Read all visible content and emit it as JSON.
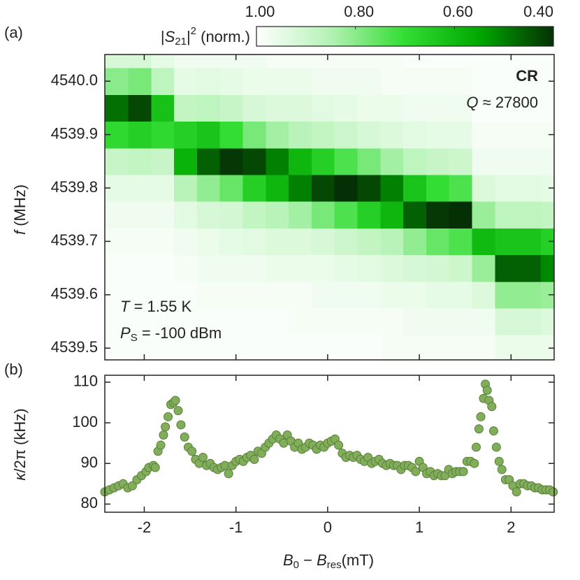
{
  "chart_data": [
    {
      "type": "heatmap",
      "panel_label": "(a)",
      "y_label": [
        "f",
        " (MHz)"
      ],
      "annotations": [
        [
          "CR"
        ],
        [
          "Q",
          " ≈ 27800"
        ],
        [
          "T",
          " = 1.55 K"
        ],
        [
          "P",
          "S",
          " = -100 dBm"
        ]
      ],
      "colorbar": {
        "label": [
          "|",
          "S",
          "21",
          "|",
          "2",
          " (norm.)"
        ],
        "clim": [
          1.0,
          0.4
        ],
        "ticks": [
          {
            "value": 1.0,
            "label": "1.00"
          },
          {
            "value": 0.8,
            "label": "0.80"
          },
          {
            "value": 0.6,
            "label": "0.60"
          },
          {
            "value": 0.4,
            "label": "0.40"
          }
        ],
        "colormap": [
          "#ffffff",
          "#b4f2b4",
          "#33dd33",
          "#00a800",
          "#053005"
        ]
      },
      "xlim": [
        -2.43,
        2.47
      ],
      "xticks": [
        -2,
        -1,
        0,
        1,
        2
      ],
      "show_xtick_labels": false,
      "ylim": [
        4539.478,
        4540.05
      ],
      "yticks": [
        {
          "value": 4539.5,
          "label": "4539.5"
        },
        4539.6,
        4539.7,
        4539.8,
        4539.9,
        {
          "value": 4540.0,
          "label": "4540.0"
        }
      ],
      "x": [
        -2.3,
        -2.05,
        -1.8,
        -1.55,
        -1.3,
        -1.05,
        -0.8,
        -0.55,
        -0.3,
        -0.05,
        0.2,
        0.45,
        0.7,
        0.95,
        1.2,
        1.45,
        1.7,
        1.95,
        2.2,
        2.45
      ],
      "y": [
        4539.5,
        4539.55,
        4539.6,
        4539.65,
        4539.7,
        4539.75,
        4539.8,
        4539.85,
        4539.9,
        4539.95,
        4540.0,
        4540.05
      ],
      "z": [
        [
          0.99,
          0.99,
          0.99,
          0.99,
          0.98,
          0.97,
          0.95,
          0.89,
          0.69,
          0.48,
          0.8,
          0.92
        ],
        [
          0.99,
          0.99,
          0.99,
          0.99,
          0.98,
          0.97,
          0.95,
          0.88,
          0.66,
          0.43,
          0.78,
          0.92
        ],
        [
          0.99,
          0.99,
          0.99,
          0.99,
          0.98,
          0.97,
          0.95,
          0.89,
          0.69,
          0.62,
          0.87,
          0.95
        ],
        [
          0.99,
          0.99,
          0.99,
          0.98,
          0.97,
          0.94,
          0.86,
          0.58,
          0.66,
          0.88,
          0.95,
          0.97
        ],
        [
          0.99,
          0.99,
          0.98,
          0.97,
          0.96,
          0.92,
          0.81,
          0.46,
          0.63,
          0.87,
          0.94,
          0.97
        ],
        [
          0.99,
          0.99,
          0.98,
          0.97,
          0.95,
          0.91,
          0.76,
          0.41,
          0.7,
          0.89,
          0.95,
          0.97
        ],
        [
          0.99,
          0.99,
          0.98,
          0.97,
          0.94,
          0.88,
          0.66,
          0.43,
          0.78,
          0.92,
          0.96,
          0.97
        ],
        [
          0.99,
          0.99,
          0.98,
          0.96,
          0.93,
          0.86,
          0.59,
          0.5,
          0.83,
          0.93,
          0.96,
          0.98
        ],
        [
          0.99,
          0.98,
          0.98,
          0.96,
          0.93,
          0.83,
          0.5,
          0.59,
          0.86,
          0.93,
          0.96,
          0.98
        ],
        [
          0.99,
          0.98,
          0.97,
          0.96,
          0.92,
          0.78,
          0.43,
          0.66,
          0.88,
          0.94,
          0.97,
          0.98
        ],
        [
          0.99,
          0.98,
          0.97,
          0.95,
          0.9,
          0.73,
          0.4,
          0.73,
          0.9,
          0.95,
          0.97,
          0.98
        ],
        [
          0.99,
          0.98,
          0.97,
          0.94,
          0.88,
          0.66,
          0.43,
          0.78,
          0.92,
          0.96,
          0.97,
          0.98
        ],
        [
          0.98,
          0.98,
          0.96,
          0.93,
          0.86,
          0.59,
          0.5,
          0.83,
          0.93,
          0.96,
          0.98,
          0.98
        ],
        [
          0.98,
          0.97,
          0.96,
          0.92,
          0.81,
          0.46,
          0.63,
          0.87,
          0.94,
          0.97,
          0.98,
          0.99
        ],
        [
          0.98,
          0.97,
          0.95,
          0.91,
          0.76,
          0.41,
          0.7,
          0.89,
          0.95,
          0.97,
          0.98,
          0.99
        ],
        [
          0.98,
          0.97,
          0.95,
          0.9,
          0.73,
          0.4,
          0.73,
          0.9,
          0.95,
          0.97,
          0.98,
          0.99
        ],
        [
          0.98,
          0.97,
          0.93,
          0.82,
          0.6,
          0.82,
          0.93,
          0.97,
          0.98,
          0.99,
          0.99,
          0.99
        ],
        [
          0.96,
          0.92,
          0.81,
          0.46,
          0.63,
          0.87,
          0.94,
          0.97,
          0.98,
          0.99,
          0.99,
          0.99
        ],
        [
          0.96,
          0.92,
          0.81,
          0.46,
          0.63,
          0.87,
          0.94,
          0.97,
          0.98,
          0.99,
          0.99,
          0.99
        ],
        [
          0.96,
          0.93,
          0.82,
          0.51,
          0.66,
          0.88,
          0.95,
          0.97,
          0.98,
          0.99,
          0.99,
          0.99
        ]
      ]
    },
    {
      "type": "scatter",
      "panel_label": "(b)",
      "x_label": [
        "B",
        "0",
        " − ",
        "B",
        "res",
        "(mT)"
      ],
      "y_label": [
        "κ",
        "/2π (kHz)"
      ],
      "color": "#82ae5c",
      "edge_color": "#557f36",
      "xlim": [
        -2.43,
        2.47
      ],
      "xticks": [
        -2,
        -1,
        0,
        1,
        2
      ],
      "show_xtick_labels": true,
      "ylim": [
        78,
        111.7
      ],
      "yticks": [
        80,
        90,
        100,
        110
      ],
      "x": [
        -2.43,
        -2.38,
        -2.33,
        -2.28,
        -2.23,
        -2.18,
        -2.13,
        -2.08,
        -2.03,
        -1.98,
        -1.95,
        -1.9,
        -1.88,
        -1.85,
        -1.82,
        -1.79,
        -1.77,
        -1.74,
        -1.71,
        -1.68,
        -1.66,
        -1.63,
        -1.6,
        -1.56,
        -1.52,
        -1.48,
        -1.44,
        -1.4,
        -1.36,
        -1.32,
        -1.28,
        -1.24,
        -1.2,
        -1.16,
        -1.12,
        -1.08,
        -1.04,
        -1,
        -0.96,
        -0.92,
        -0.88,
        -0.84,
        -0.8,
        -0.76,
        -0.72,
        -0.68,
        -0.64,
        -0.6,
        -0.56,
        -0.52,
        -0.48,
        -0.44,
        -0.4,
        -0.36,
        -0.32,
        -0.28,
        -0.24,
        -0.2,
        -0.16,
        -0.12,
        -0.08,
        -0.04,
        0,
        0.04,
        0.08,
        0.12,
        0.16,
        0.2,
        0.24,
        0.28,
        0.32,
        0.36,
        0.4,
        0.44,
        0.48,
        0.52,
        0.56,
        0.6,
        0.64,
        0.68,
        0.72,
        0.76,
        0.8,
        0.84,
        0.88,
        0.92,
        0.96,
        1,
        1.04,
        1.08,
        1.12,
        1.16,
        1.2,
        1.24,
        1.28,
        1.32,
        1.36,
        1.4,
        1.44,
        1.48,
        1.52,
        1.56,
        1.6,
        1.62,
        1.65,
        1.67,
        1.7,
        1.72,
        1.74,
        1.76,
        1.79,
        1.81,
        1.84,
        1.87,
        1.9,
        1.94,
        1.98,
        2.02,
        2.06,
        2.1,
        2.14,
        2.18,
        2.22,
        2.26,
        2.3,
        2.34,
        2.38,
        2.42,
        2.46
      ],
      "values": [
        83,
        83.5,
        84,
        84.5,
        85,
        84,
        84.5,
        86,
        87,
        88,
        89,
        89.5,
        89,
        93,
        94.5,
        97,
        99,
        101.5,
        104.5,
        105,
        105.5,
        103,
        99.5,
        96.5,
        94,
        93,
        91,
        90,
        91.5,
        89.5,
        90,
        89,
        88.5,
        89,
        89.5,
        87.5,
        89.5,
        90.5,
        91,
        90.5,
        91.5,
        92,
        91,
        93,
        92.5,
        94,
        95,
        96,
        97,
        96,
        95,
        97,
        95.5,
        94,
        95,
        93.5,
        94,
        95,
        94.5,
        93.5,
        94.5,
        94,
        95,
        95.5,
        96,
        94.5,
        92.5,
        91.5,
        92,
        91.5,
        92,
        91,
        90.5,
        91.5,
        90,
        90.5,
        91,
        90,
        89.5,
        90,
        89.5,
        89.5,
        88.5,
        89.5,
        89.5,
        89,
        88,
        90.5,
        89,
        87.5,
        88,
        87,
        87.5,
        87,
        87,
        88.5,
        87.5,
        88,
        88,
        88,
        90.5,
        90.5,
        90,
        94,
        98.5,
        101.5,
        106,
        109.5,
        108,
        105.5,
        104,
        98,
        94,
        90.5,
        88.5,
        86,
        86,
        84.5,
        83,
        85,
        85,
        84.5,
        84.5,
        84,
        84,
        83.5,
        83.5,
        83.5,
        83
      ]
    }
  ]
}
